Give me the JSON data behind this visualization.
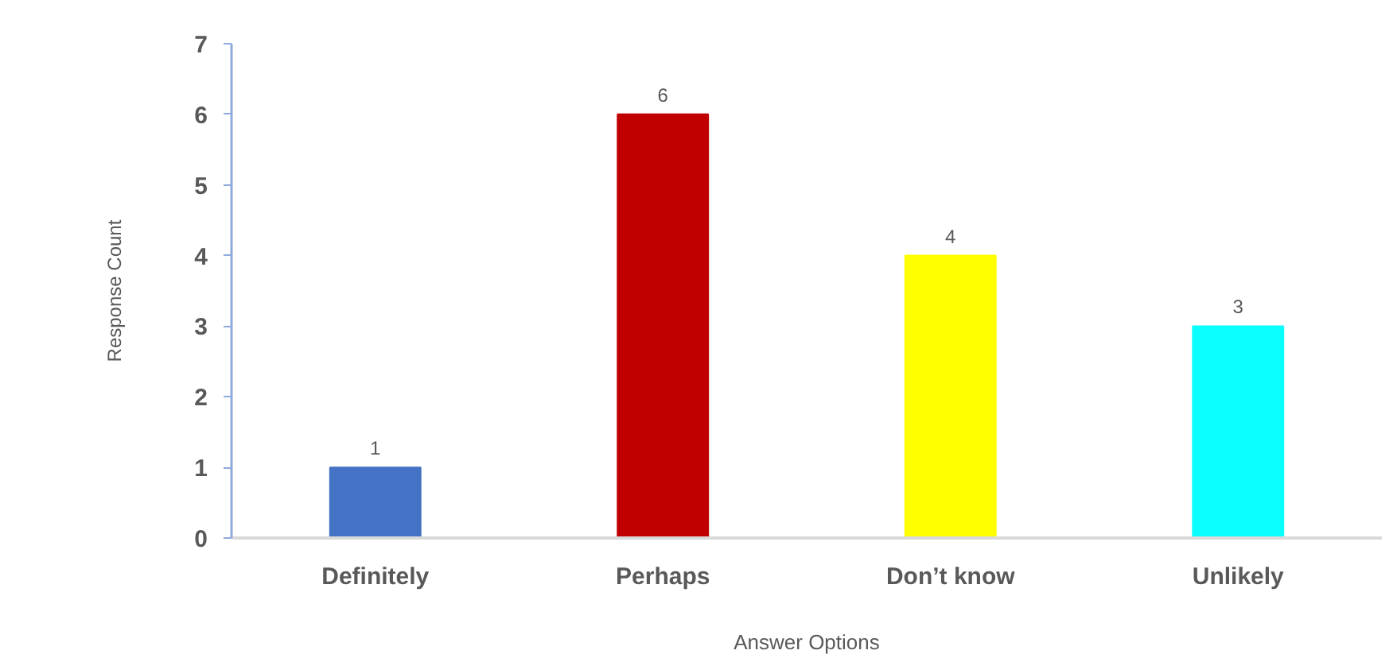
{
  "chart_data": {
    "type": "bar",
    "xlabel": "Answer Options",
    "ylabel": "Response Count",
    "categories": [
      "Definitely",
      "Perhaps",
      "Don’t know",
      "Unlikely"
    ],
    "values": [
      1,
      6,
      4,
      3
    ],
    "colors": [
      "#4472c4",
      "#c00000",
      "#ffff00",
      "#0affff"
    ],
    "ylim": [
      0,
      7
    ],
    "yticks": [
      0,
      1,
      2,
      3,
      4,
      5,
      6,
      7
    ],
    "grid": false,
    "data_labels": true
  }
}
